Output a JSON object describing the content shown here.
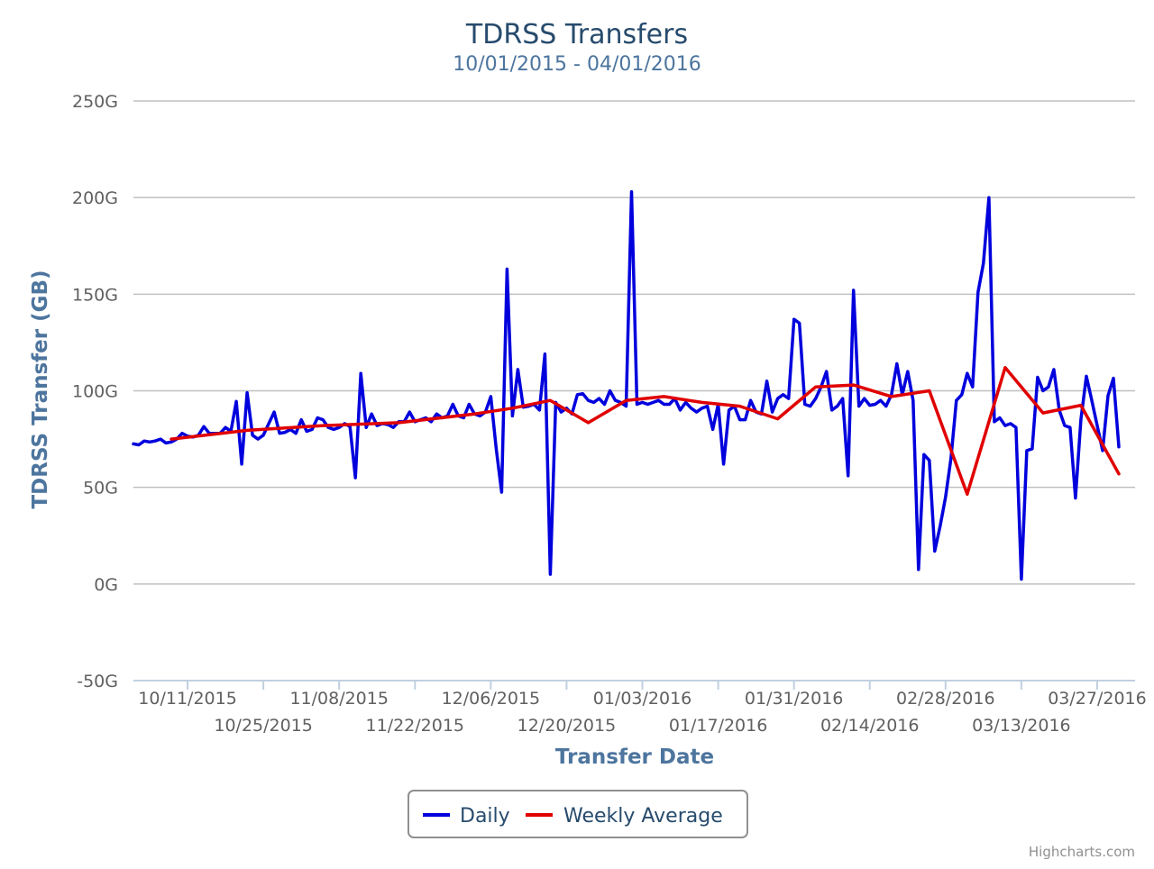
{
  "chart_data": {
    "type": "line",
    "title": "TDRSS Transfers",
    "subtitle": "10/01/2015 - 04/01/2016",
    "xlabel": "Transfer Date",
    "ylabel": "TDRSS Transfer (GB)",
    "ylim": [
      -50,
      250
    ],
    "yticks": [
      250,
      200,
      150,
      100,
      50,
      0,
      -50
    ],
    "ytick_labels": [
      "250G",
      "200G",
      "150G",
      "100G",
      "50G",
      "0G",
      "-50G"
    ],
    "xlim": [
      "2015-10-01",
      "2016-04-03"
    ],
    "xticks": [
      {
        "date": "2015-10-11",
        "label": "10/11/2015"
      },
      {
        "date": "2015-10-25",
        "label": "10/25/2015"
      },
      {
        "date": "2015-11-08",
        "label": "11/08/2015"
      },
      {
        "date": "2015-11-22",
        "label": "11/22/2015"
      },
      {
        "date": "2015-12-06",
        "label": "12/06/2015"
      },
      {
        "date": "2015-12-20",
        "label": "12/20/2015"
      },
      {
        "date": "2016-01-03",
        "label": "01/03/2016"
      },
      {
        "date": "2016-01-17",
        "label": "01/17/2016"
      },
      {
        "date": "2016-01-31",
        "label": "01/31/2016"
      },
      {
        "date": "2016-02-14",
        "label": "02/14/2016"
      },
      {
        "date": "2016-02-28",
        "label": "02/28/2016"
      },
      {
        "date": "2016-03-13",
        "label": "03/13/2016"
      },
      {
        "date": "2016-03-27",
        "label": "03/27/2016"
      }
    ],
    "grid": true,
    "legend_position": "bottom-center",
    "series": [
      {
        "name": "Daily",
        "color": "#0000dd",
        "start_date": "2015-10-01",
        "values": [
          72.5,
          72,
          74,
          73.5,
          74,
          75,
          73,
          73.5,
          75,
          78,
          76.5,
          76,
          77,
          81.5,
          78,
          78,
          78,
          81,
          79,
          94.5,
          62,
          99,
          77,
          75,
          77,
          83,
          89,
          78,
          78.5,
          80,
          78,
          85,
          79,
          80,
          86,
          85,
          81,
          80,
          81,
          83,
          81.5,
          55,
          109,
          81,
          88,
          82,
          83,
          82.5,
          81,
          84,
          84,
          89,
          84,
          85,
          86,
          84,
          88,
          86,
          87,
          93,
          87,
          86,
          93,
          88,
          87,
          89,
          97,
          70,
          47.5,
          163,
          87,
          111,
          91.5,
          92,
          93,
          90,
          119,
          5,
          94,
          89,
          91,
          88,
          98,
          98.5,
          95,
          94,
          96,
          93,
          100,
          95,
          94,
          92,
          203,
          93,
          94,
          93,
          94,
          95,
          93,
          93,
          96,
          90,
          94,
          91,
          89,
          91,
          92,
          80,
          93,
          62,
          90,
          92,
          85,
          85,
          95,
          89,
          88,
          105,
          89,
          96,
          98,
          96,
          137,
          135,
          93,
          92,
          96,
          102,
          110,
          90,
          92,
          96,
          56,
          152,
          92,
          96,
          92.5,
          93,
          95,
          92,
          98,
          114,
          98,
          110,
          95,
          7.5,
          67,
          64,
          17,
          30,
          45,
          65,
          95,
          98,
          109,
          102,
          151,
          166,
          200,
          84,
          86,
          82,
          83,
          81,
          2.5,
          69,
          70,
          107,
          100,
          102,
          111,
          90,
          82,
          81,
          44.5,
          85,
          107.5,
          95,
          82,
          69,
          97.5,
          106.5,
          71
        ]
      },
      {
        "name": "Weekly Average",
        "color": "#e00000",
        "points": [
          {
            "date": "2015-10-08",
            "value": 75
          },
          {
            "date": "2015-10-22",
            "value": 79.5
          },
          {
            "date": "2015-11-05",
            "value": 82
          },
          {
            "date": "2015-11-19",
            "value": 83.5
          },
          {
            "date": "2015-12-03",
            "value": 88
          },
          {
            "date": "2015-12-10",
            "value": 91
          },
          {
            "date": "2015-12-17",
            "value": 95
          },
          {
            "date": "2015-12-24",
            "value": 83.5
          },
          {
            "date": "2015-12-31",
            "value": 95
          },
          {
            "date": "2016-01-07",
            "value": 97
          },
          {
            "date": "2016-01-14",
            "value": 94
          },
          {
            "date": "2016-01-21",
            "value": 92
          },
          {
            "date": "2016-01-28",
            "value": 85.5
          },
          {
            "date": "2016-02-04",
            "value": 102
          },
          {
            "date": "2016-02-11",
            "value": 103
          },
          {
            "date": "2016-02-18",
            "value": 97
          },
          {
            "date": "2016-02-25",
            "value": 100
          },
          {
            "date": "2016-03-03",
            "value": 46.5
          },
          {
            "date": "2016-03-10",
            "value": 112
          },
          {
            "date": "2016-03-17",
            "value": 88.5
          },
          {
            "date": "2016-03-24",
            "value": 92.5
          },
          {
            "date": "2016-03-31",
            "value": 57
          }
        ]
      }
    ]
  },
  "legend": {
    "items": [
      {
        "label": "Daily",
        "color": "#0000dd"
      },
      {
        "label": "Weekly Average",
        "color": "#e00000"
      }
    ]
  },
  "credits": "Highcharts.com"
}
